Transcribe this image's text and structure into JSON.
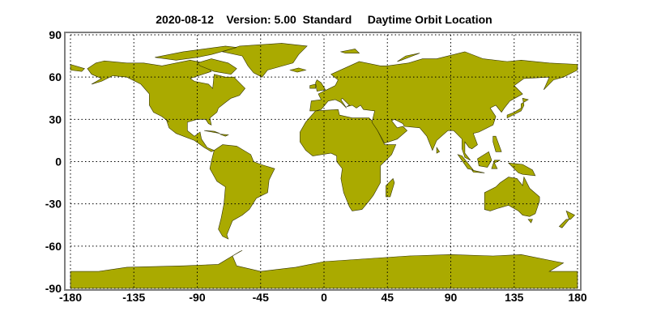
{
  "title": "2020-08-12    Version: 5.00  Standard     Daytime Orbit Location",
  "chart_data": {
    "type": "map",
    "projection": "equirectangular",
    "title": "2020-08-12    Version: 5.00  Standard     Daytime Orbit Location",
    "xlim": [
      -180,
      180
    ],
    "ylim": [
      -90,
      90
    ],
    "x_ticks": [
      "-180",
      "-135",
      "-90",
      "-45",
      "0",
      "45",
      "90",
      "135",
      "180"
    ],
    "y_ticks": [
      "90",
      "60",
      "30",
      "0",
      "-30",
      "-60",
      "-90"
    ],
    "grid": true,
    "grid_style": "dotted",
    "land_color": "#aaaa00",
    "coastline_color": "#333300",
    "frame_color": "#7f7f7f",
    "orbit_track": []
  }
}
